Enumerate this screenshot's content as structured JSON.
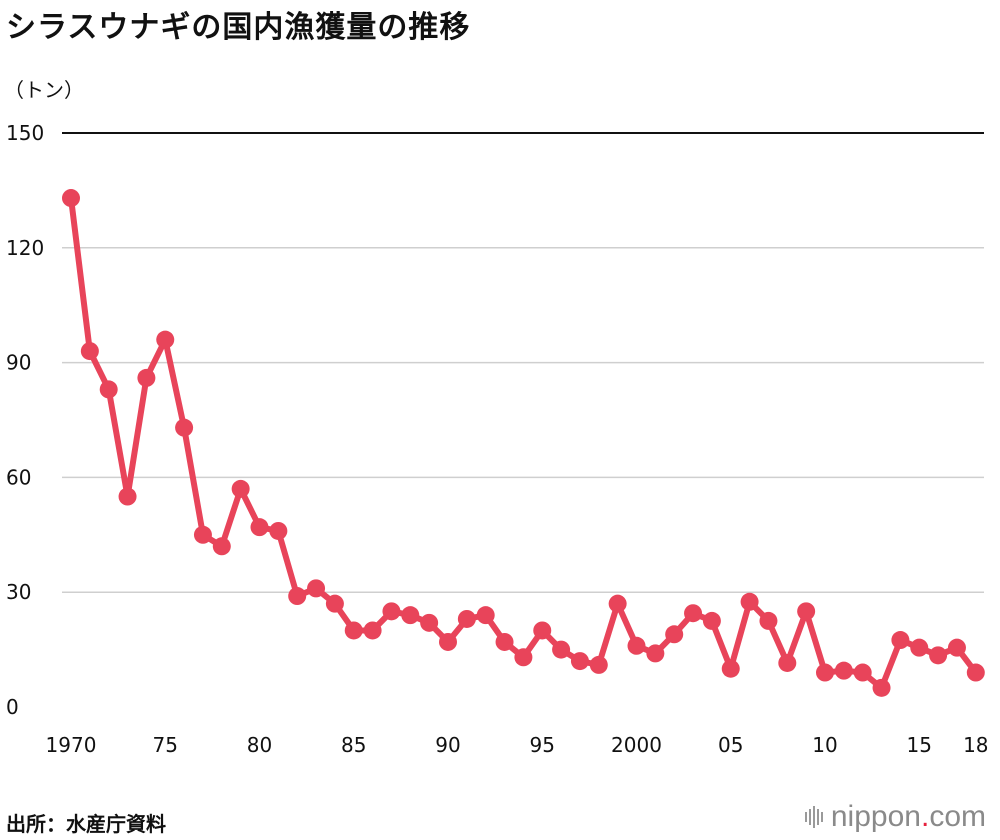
{
  "title": "シラスウナギの国内漁獲量の推移",
  "unit_label": "（トン）",
  "source": "出所：水産庁資料",
  "brand": {
    "name": "nippon",
    "dot": ".",
    "tld": "com",
    "dot_color": "#e6223e"
  },
  "chart_data": {
    "type": "line",
    "title": "シラスウナギの国内漁獲量の推移",
    "ylabel": "（トン）",
    "xlabel": "",
    "ylim": [
      0,
      150
    ],
    "yticks": [
      0,
      30,
      60,
      90,
      120,
      150
    ],
    "xticks": [
      {
        "year": 1970,
        "label": "1970"
      },
      {
        "year": 1975,
        "label": "75"
      },
      {
        "year": 1980,
        "label": "80"
      },
      {
        "year": 1985,
        "label": "85"
      },
      {
        "year": 1990,
        "label": "90"
      },
      {
        "year": 1995,
        "label": "95"
      },
      {
        "year": 2000,
        "label": "2000"
      },
      {
        "year": 2005,
        "label": "05"
      },
      {
        "year": 2010,
        "label": "10"
      },
      {
        "year": 2015,
        "label": "15"
      },
      {
        "year": 2018,
        "label": "18"
      }
    ],
    "grid": true,
    "line_color": "#e8445a",
    "x": [
      1970,
      1971,
      1972,
      1973,
      1974,
      1975,
      1976,
      1977,
      1978,
      1979,
      1980,
      1981,
      1982,
      1983,
      1984,
      1985,
      1986,
      1987,
      1988,
      1989,
      1990,
      1991,
      1992,
      1993,
      1994,
      1995,
      1996,
      1997,
      1998,
      1999,
      2000,
      2001,
      2002,
      2003,
      2004,
      2005,
      2006,
      2007,
      2008,
      2009,
      2010,
      2011,
      2012,
      2013,
      2014,
      2015,
      2016,
      2017,
      2018
    ],
    "values": [
      133,
      93,
      83,
      55,
      86,
      96,
      73,
      45,
      42,
      57,
      47,
      46,
      29,
      31,
      27,
      20,
      20,
      25,
      24,
      22,
      17,
      23,
      24,
      17,
      13,
      20,
      15,
      12,
      11,
      27,
      16,
      14,
      19,
      24.5,
      22.5,
      10,
      27.5,
      22.5,
      11.5,
      25,
      9,
      9.5,
      9,
      5,
      17.5,
      15.5,
      13.5,
      15.5,
      9
    ]
  }
}
